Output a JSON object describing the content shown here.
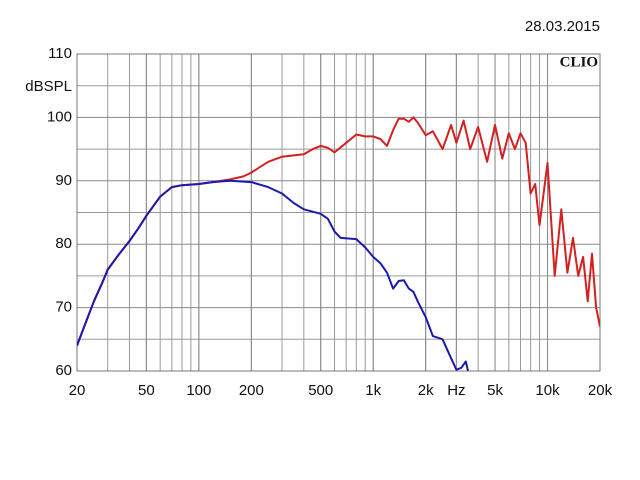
{
  "chart_data": {
    "type": "line",
    "xscale": "log",
    "grid": true,
    "date": "28.03.2015",
    "ylabel": "dBSPL",
    "annotation": "CLIO",
    "xlim": [
      20,
      20000
    ],
    "ylim": [
      60,
      110
    ],
    "xticks": [
      20,
      50,
      100,
      200,
      500,
      {
        "value": 1000,
        "label": "1k"
      },
      {
        "value": 2000,
        "label": "2k"
      },
      {
        "value": 3000,
        "label": "Hz"
      },
      {
        "value": 5000,
        "label": "5k"
      },
      {
        "value": 10000,
        "label": "10k"
      },
      {
        "value": 20000,
        "label": "20k"
      }
    ],
    "yticks": [
      60,
      70,
      80,
      90,
      100,
      110
    ],
    "series": [
      {
        "color": "#d42020",
        "x": [
          20,
          22,
          25,
          28,
          30,
          35,
          40,
          45,
          50,
          60,
          70,
          80,
          100,
          120,
          150,
          180,
          200,
          250,
          300,
          350,
          400,
          450,
          500,
          550,
          600,
          700,
          800,
          900,
          1000,
          1100,
          1200,
          1300,
          1400,
          1500,
          1600,
          1700,
          1800,
          2000,
          2200,
          2500,
          2800,
          3000,
          3300,
          3600,
          4000,
          4500,
          5000,
          5500,
          6000,
          6500,
          7000,
          7500,
          8000,
          8500,
          9000,
          10000,
          11000,
          12000,
          13000,
          14000,
          15000,
          16000,
          17000,
          18000,
          19000,
          20000
        ],
        "values": [
          64,
          67,
          71,
          74,
          76,
          78.5,
          80.5,
          82.5,
          84.5,
          87.5,
          89,
          89.3,
          89.5,
          89.8,
          90.2,
          90.7,
          91.3,
          93,
          93.8,
          94,
          94.2,
          95,
          95.5,
          95.2,
          94.5,
          96,
          97.3,
          97,
          97,
          96.6,
          95.5,
          98,
          99.8,
          99.8,
          99.3,
          100,
          99.2,
          97.2,
          97.8,
          95,
          98.8,
          96,
          99.5,
          95,
          98.5,
          93,
          98.8,
          93.5,
          97.5,
          95,
          97.5,
          96,
          88,
          89.5,
          83,
          92.8,
          75,
          85.5,
          75.5,
          81,
          75,
          78,
          71,
          78.5,
          70,
          67
        ]
      },
      {
        "color": "#1a1ab0",
        "x": [
          20,
          22,
          25,
          28,
          30,
          35,
          40,
          45,
          50,
          60,
          70,
          80,
          100,
          120,
          150,
          200,
          250,
          300,
          350,
          400,
          500,
          550,
          600,
          650,
          800,
          900,
          1000,
          1100,
          1200,
          1300,
          1400,
          1500,
          1600,
          1700,
          1800,
          2000,
          2200,
          2500,
          2800,
          3000,
          3200,
          3400,
          3500
        ],
        "values": [
          64,
          67,
          71,
          74,
          76,
          78.5,
          80.5,
          82.5,
          84.5,
          87.5,
          89,
          89.3,
          89.5,
          89.8,
          90,
          89.8,
          89,
          88,
          86.5,
          85.5,
          84.8,
          84,
          82,
          81,
          80.8,
          79.5,
          78,
          77,
          75.5,
          73,
          74.2,
          74.3,
          73,
          72.5,
          71,
          68.5,
          65.5,
          65,
          62,
          60.2,
          60.5,
          61.5,
          60
        ]
      }
    ]
  }
}
